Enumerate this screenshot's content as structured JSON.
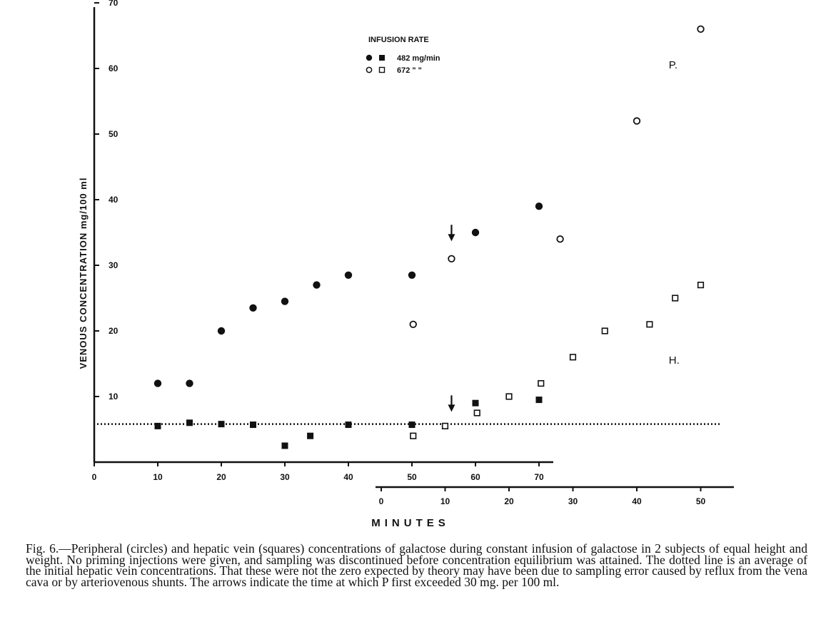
{
  "chart_data": {
    "type": "scatter",
    "ylabel": "VENOUS CONCENTRATION  mg/100 ml",
    "xlabel": "MINUTES",
    "y_ticks": [
      "10",
      "20",
      "30",
      "40",
      "50",
      "60",
      "70"
    ],
    "ylim": [
      0,
      70
    ],
    "x_axis_1": {
      "ticks": [
        "0",
        "10",
        "20",
        "30",
        "40",
        "50",
        "60",
        "70"
      ],
      "range": [
        0,
        70
      ]
    },
    "x_axis_2": {
      "ticks": [
        "0",
        "10",
        "20",
        "30",
        "40",
        "50"
      ],
      "range": [
        0,
        55
      ]
    },
    "legend": {
      "title": "INFUSION RATE",
      "entries": [
        {
          "symbols": "filled",
          "label": "482 mg/min"
        },
        {
          "symbols": "open",
          "label": "672  \"  \""
        }
      ]
    },
    "series": [
      {
        "marker": "filled-circle",
        "axis": "x_axis_1",
        "points": [
          [
            10,
            12
          ],
          [
            15,
            12
          ],
          [
            20,
            20
          ],
          [
            25,
            23.5
          ],
          [
            30,
            24.5
          ],
          [
            35,
            27
          ],
          [
            40,
            28.5
          ],
          [
            50,
            28.5
          ],
          [
            60,
            35
          ],
          [
            70,
            39
          ]
        ]
      },
      {
        "marker": "filled-square",
        "axis": "x_axis_1",
        "points": [
          [
            10,
            5.5
          ],
          [
            15,
            6
          ],
          [
            20,
            5.8
          ],
          [
            25,
            5.7
          ],
          [
            30,
            2.5
          ],
          [
            34,
            4
          ],
          [
            40,
            5.7
          ],
          [
            50,
            5.7
          ],
          [
            60,
            9
          ],
          [
            70,
            9.5
          ]
        ]
      },
      {
        "marker": "open-circle",
        "axis": "x_axis_2",
        "points": [
          [
            5,
            21
          ],
          [
            11,
            31
          ],
          [
            28,
            34
          ],
          [
            40,
            52
          ],
          [
            50,
            66
          ]
        ]
      },
      {
        "marker": "open-square",
        "axis": "x_axis_2",
        "points": [
          [
            5,
            4
          ],
          [
            10,
            5.5
          ],
          [
            15,
            7.5
          ],
          [
            20,
            10
          ],
          [
            25,
            12
          ],
          [
            30,
            16
          ],
          [
            35,
            20
          ],
          [
            42,
            21
          ],
          [
            46,
            25
          ],
          [
            50,
            27
          ]
        ]
      }
    ],
    "reference_line": {
      "style": "dotted",
      "y": 5.8
    },
    "arrows": [
      {
        "axis": "x_axis_2",
        "x": 11,
        "y": 34
      },
      {
        "axis": "x_axis_2",
        "x": 11,
        "y": 8
      }
    ],
    "annotations": [
      {
        "text": "P.",
        "axis": "x_axis_2",
        "x": 45,
        "y": 60
      },
      {
        "text": "H.",
        "axis": "x_axis_2",
        "x": 45,
        "y": 15
      }
    ]
  },
  "caption": "Fig. 6.—Peripheral (circles) and hepatic vein (squares) concentrations of galactose during constant infusion of galactose in 2 subjects of equal height and weight. No priming injections were given, and sampling was discontinued before concentration equilibrium was attained. The dotted line is an average of the initial hepatic vein concentrations. That these were not the zero expected by theory may have been due to sampling error caused by reflux from the vena cava or by arteriovenous shunts. The arrows indicate the time at which P first exceeded 30 mg. per 100 ml."
}
